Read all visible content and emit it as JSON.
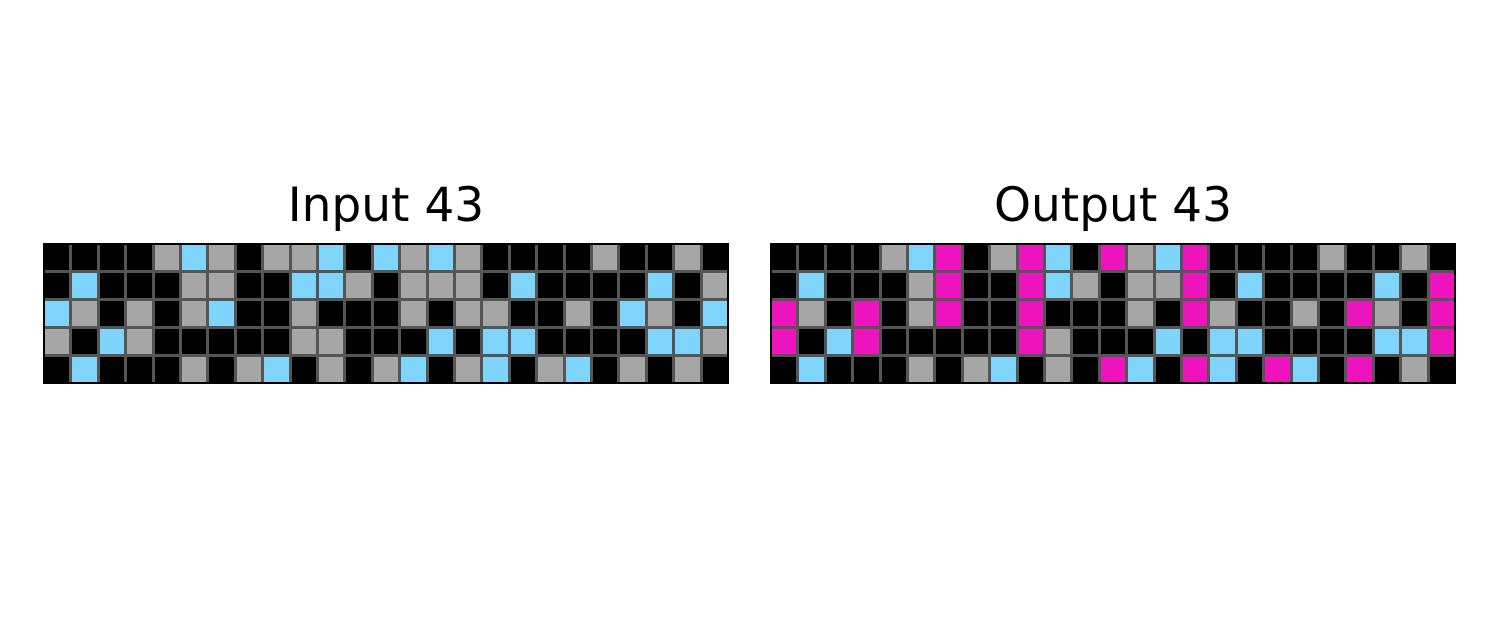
{
  "palette": {
    "0": "#000000",
    "5": "#a6a6a6",
    "8": "#7fd4fb",
    "6": "#ee14bd"
  },
  "panels": [
    {
      "title": "Input 43",
      "grid": [
        [
          0,
          0,
          0,
          0,
          5,
          8,
          5,
          0,
          5,
          5,
          8,
          0,
          8,
          5,
          8,
          5,
          0,
          0,
          0,
          0,
          5,
          0,
          0,
          5,
          0
        ],
        [
          0,
          8,
          0,
          0,
          0,
          5,
          5,
          0,
          0,
          8,
          8,
          5,
          0,
          5,
          5,
          5,
          0,
          8,
          0,
          0,
          0,
          0,
          8,
          0,
          5
        ],
        [
          8,
          5,
          0,
          5,
          0,
          5,
          8,
          0,
          0,
          5,
          0,
          0,
          0,
          5,
          0,
          5,
          5,
          0,
          0,
          5,
          0,
          8,
          5,
          0,
          8
        ],
        [
          5,
          0,
          8,
          5,
          0,
          0,
          0,
          0,
          0,
          5,
          5,
          0,
          0,
          0,
          8,
          0,
          8,
          8,
          0,
          0,
          0,
          0,
          8,
          8,
          5
        ],
        [
          0,
          8,
          0,
          0,
          0,
          5,
          0,
          5,
          8,
          0,
          5,
          0,
          5,
          8,
          0,
          5,
          8,
          0,
          5,
          8,
          0,
          5,
          0,
          5,
          0
        ]
      ]
    },
    {
      "title": "Output 43",
      "grid": [
        [
          0,
          0,
          0,
          0,
          5,
          8,
          6,
          0,
          5,
          6,
          8,
          0,
          6,
          5,
          8,
          6,
          0,
          0,
          0,
          0,
          5,
          0,
          0,
          5,
          0
        ],
        [
          0,
          8,
          0,
          0,
          0,
          5,
          6,
          0,
          0,
          6,
          8,
          5,
          0,
          5,
          5,
          6,
          0,
          8,
          0,
          0,
          0,
          0,
          8,
          0,
          6
        ],
        [
          6,
          5,
          0,
          6,
          0,
          5,
          6,
          0,
          0,
          6,
          0,
          0,
          0,
          5,
          0,
          6,
          5,
          0,
          0,
          5,
          0,
          6,
          5,
          0,
          6
        ],
        [
          6,
          0,
          8,
          6,
          0,
          0,
          0,
          0,
          0,
          6,
          5,
          0,
          0,
          0,
          8,
          0,
          8,
          8,
          0,
          0,
          0,
          0,
          8,
          8,
          6
        ],
        [
          0,
          8,
          0,
          0,
          0,
          5,
          0,
          5,
          8,
          0,
          5,
          0,
          6,
          8,
          0,
          6,
          8,
          0,
          6,
          8,
          0,
          6,
          0,
          5,
          0
        ]
      ]
    }
  ]
}
